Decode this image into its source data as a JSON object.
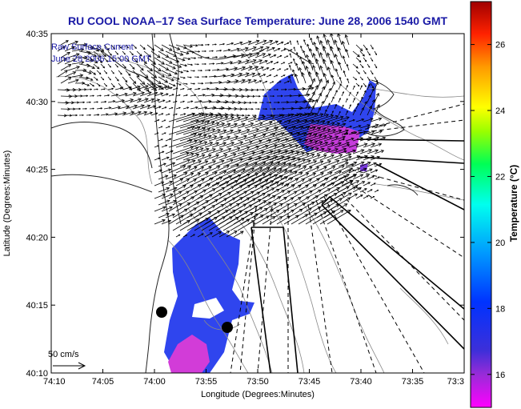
{
  "title": "RU COOL  NOAA–17  Sea Surface Temperature:  June 28, 2006 1540 GMT",
  "overlay": {
    "line1": "Raw Surface Current",
    "line2": "June 28 2006 15:00 GMT"
  },
  "scale": {
    "label": "50 cm/s",
    "speed_cms": 50
  },
  "axes": {
    "xlabel": "Longitude (Degrees:Minutes)",
    "ylabel": "Latitude (Degrees:Minutes)",
    "xticks": [
      "74:10",
      "74:05",
      "74:00",
      "73:55",
      "73:50",
      "73:45",
      "73:40",
      "73:35",
      "73:3"
    ],
    "yticks": [
      "40:35",
      "40:30",
      "40:25",
      "40:20",
      "40:15",
      "40:10"
    ],
    "xlim_minutes_west": [
      10,
      -30
    ],
    "ylim_minutes": [
      10,
      35
    ]
  },
  "colorbar": {
    "label": "Temperature (°C)",
    "ticks": [
      "26",
      "24",
      "22",
      "20",
      "18",
      "16"
    ],
    "range_c": [
      15,
      27.3
    ]
  },
  "colors": {
    "title": "#1a1aa6",
    "land_outline": "#000000",
    "bathymetry": "#888888"
  }
}
